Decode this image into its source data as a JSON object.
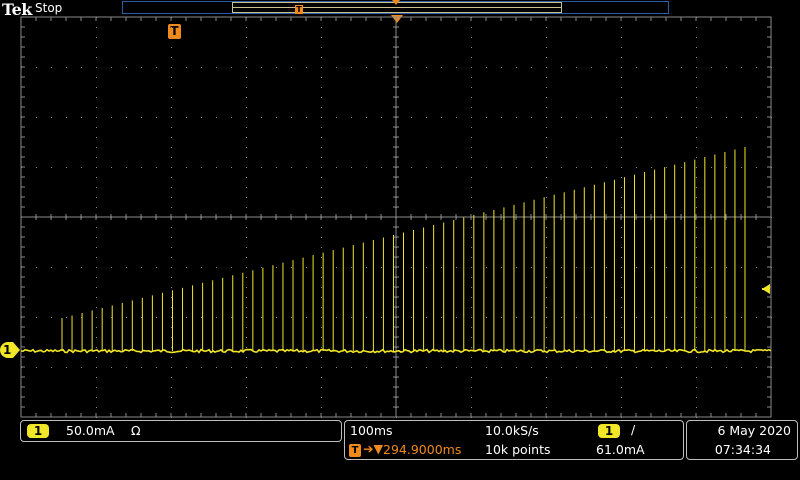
{
  "header": {
    "brand": "Tek",
    "acq_status": "Stop",
    "trigger_marker_label": "T",
    "record_trigger_label": "T"
  },
  "channel": {
    "number": "1",
    "color": "#f2e629",
    "scale": "50.0mA",
    "coupling_symbol": "Ω"
  },
  "horizontal": {
    "timebase": "100ms",
    "sample_rate": "10.0kS/s",
    "trigger_badge": "T",
    "trigger_delay": "294.9000ms",
    "record_length": "10k points"
  },
  "trigger": {
    "source": "1",
    "slope_symbol": "/",
    "level": "61.0mA"
  },
  "clock": {
    "date": "6 May 2020",
    "time": "07:34:34"
  },
  "waveform": {
    "pulse_count": 69,
    "baseline_fraction": 0.0,
    "first_pulse_fraction": 0.34,
    "last_pulse_fraction": 0.96
  },
  "colors": {
    "trace": "#f2e629",
    "trigger": "#f08a1c",
    "graticule": "#8a8a8a"
  }
}
